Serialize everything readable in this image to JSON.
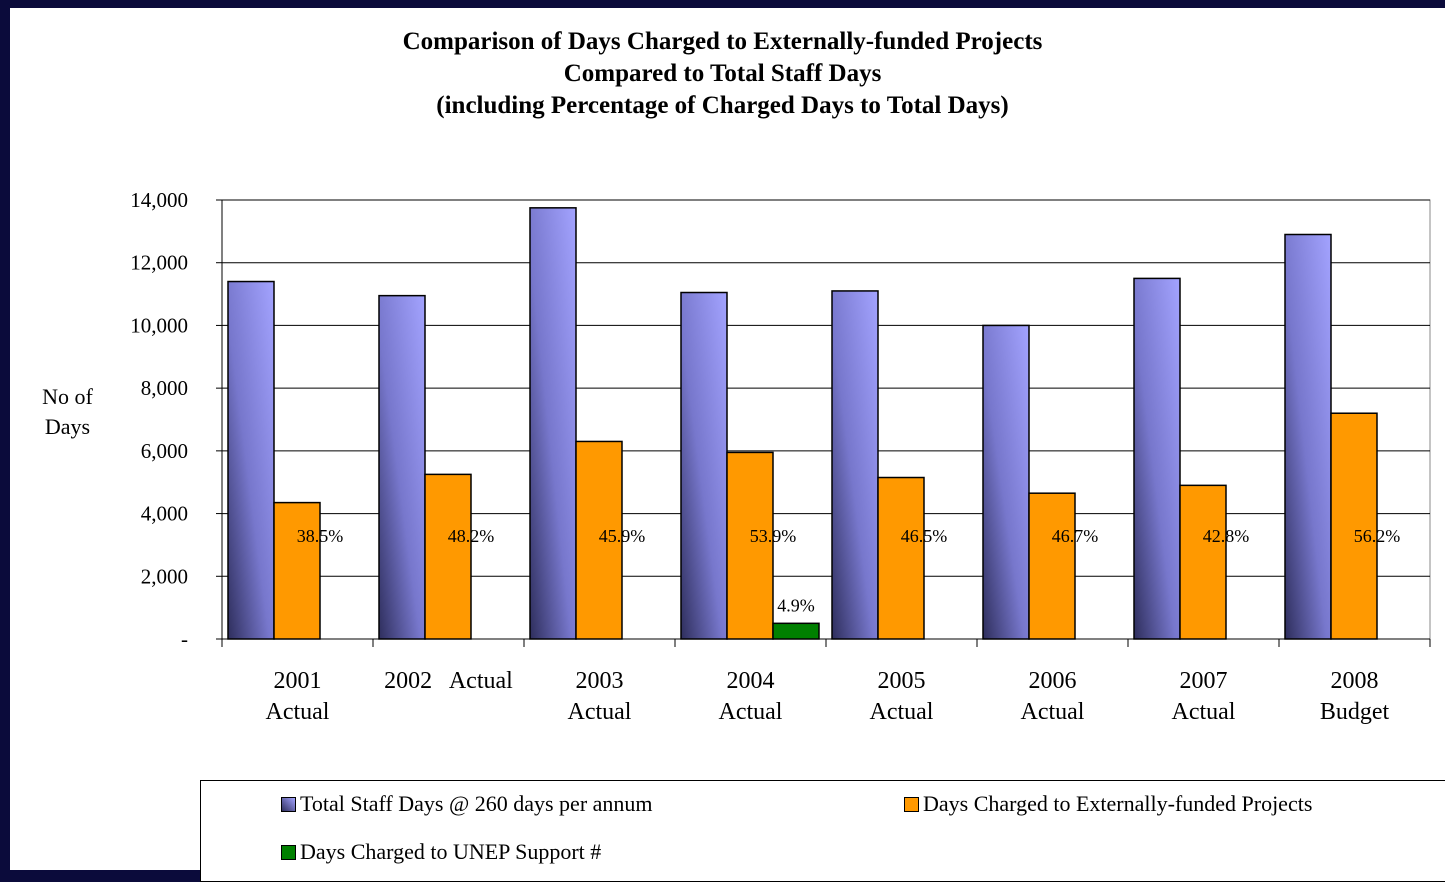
{
  "chart_data": {
    "type": "bar",
    "title": "Comparison of Days Charged to Externally-funded Projects\nCompared to Total Staff Days\n(including Percentage of Charged Days to Total Days)",
    "y_label": "No of\nDays",
    "categories": [
      "2001\nActual",
      "2002   Actual",
      "2003\nActual",
      "2004\nActual",
      "2005\nActual",
      "2006\nActual",
      "2007\nActual",
      "2008\nBudget"
    ],
    "series": [
      {
        "name": "Total Staff Days @ 260 days per annum",
        "color": "#9999ff",
        "values": [
          11400,
          10950,
          13750,
          11050,
          11100,
          10000,
          11500,
          12900
        ]
      },
      {
        "name": "Days Charged to Externally-funded Projects",
        "color": "#ff9900",
        "values": [
          4350,
          5250,
          6300,
          5950,
          5150,
          4650,
          4900,
          7200
        ],
        "labels": [
          "38.5%",
          "48.2%",
          "45.9%",
          "53.9%",
          "46.5%",
          "46.7%",
          "42.8%",
          "56.2%"
        ]
      },
      {
        "name": "Days Charged to UNEP Support #",
        "color": "#008000",
        "values": [
          null,
          null,
          null,
          500,
          null,
          null,
          null,
          null
        ],
        "labels": [
          null,
          null,
          null,
          "4.9%",
          null,
          null,
          null,
          null
        ]
      }
    ],
    "ylim": [
      0,
      14000
    ],
    "yticks": [
      {
        "value": 0,
        "label": "-"
      },
      {
        "value": 2000,
        "label": "2,000"
      },
      {
        "value": 4000,
        "label": "4,000"
      },
      {
        "value": 6000,
        "label": "6,000"
      },
      {
        "value": 8000,
        "label": "8,000"
      },
      {
        "value": 10000,
        "label": "10,000"
      },
      {
        "value": 12000,
        "label": "12,000"
      },
      {
        "value": 14000,
        "label": "14,000"
      }
    ],
    "grid": true
  }
}
